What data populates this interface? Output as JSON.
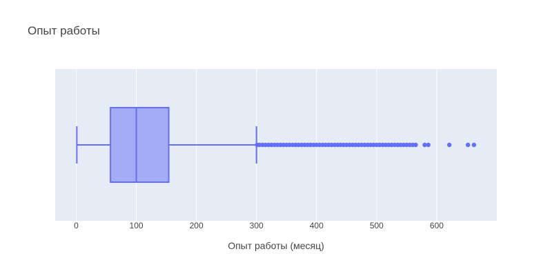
{
  "chart_data": {
    "type": "box",
    "title": "Опыт работы",
    "xlabel": "Опыт работы (месяц)",
    "ylabel": "",
    "xlim": [
      -35,
      700
    ],
    "x_ticks": [
      0,
      100,
      200,
      300,
      400,
      500,
      600
    ],
    "x_tick_labels": [
      "0",
      "100",
      "200",
      "300",
      "400",
      "500",
      "600"
    ],
    "grid": true,
    "orientation": "horizontal",
    "box": {
      "min": 1,
      "q1": 57,
      "median": 100,
      "q3": 154,
      "max": 300
    },
    "outliers": [
      301,
      305,
      310,
      315,
      320,
      325,
      330,
      335,
      340,
      345,
      350,
      355,
      360,
      365,
      370,
      375,
      380,
      385,
      390,
      395,
      400,
      405,
      410,
      415,
      420,
      425,
      430,
      435,
      440,
      445,
      450,
      455,
      460,
      465,
      470,
      475,
      480,
      485,
      490,
      495,
      500,
      505,
      510,
      515,
      520,
      525,
      530,
      535,
      540,
      545,
      550,
      555,
      560,
      565,
      580,
      586,
      621,
      652,
      662
    ],
    "colors": {
      "box_fill": "#A4ACF5",
      "box_line": "#636EFA",
      "plot_bg": "#E5ECF6",
      "grid": "#FFFFFF",
      "text": "#444444"
    }
  }
}
